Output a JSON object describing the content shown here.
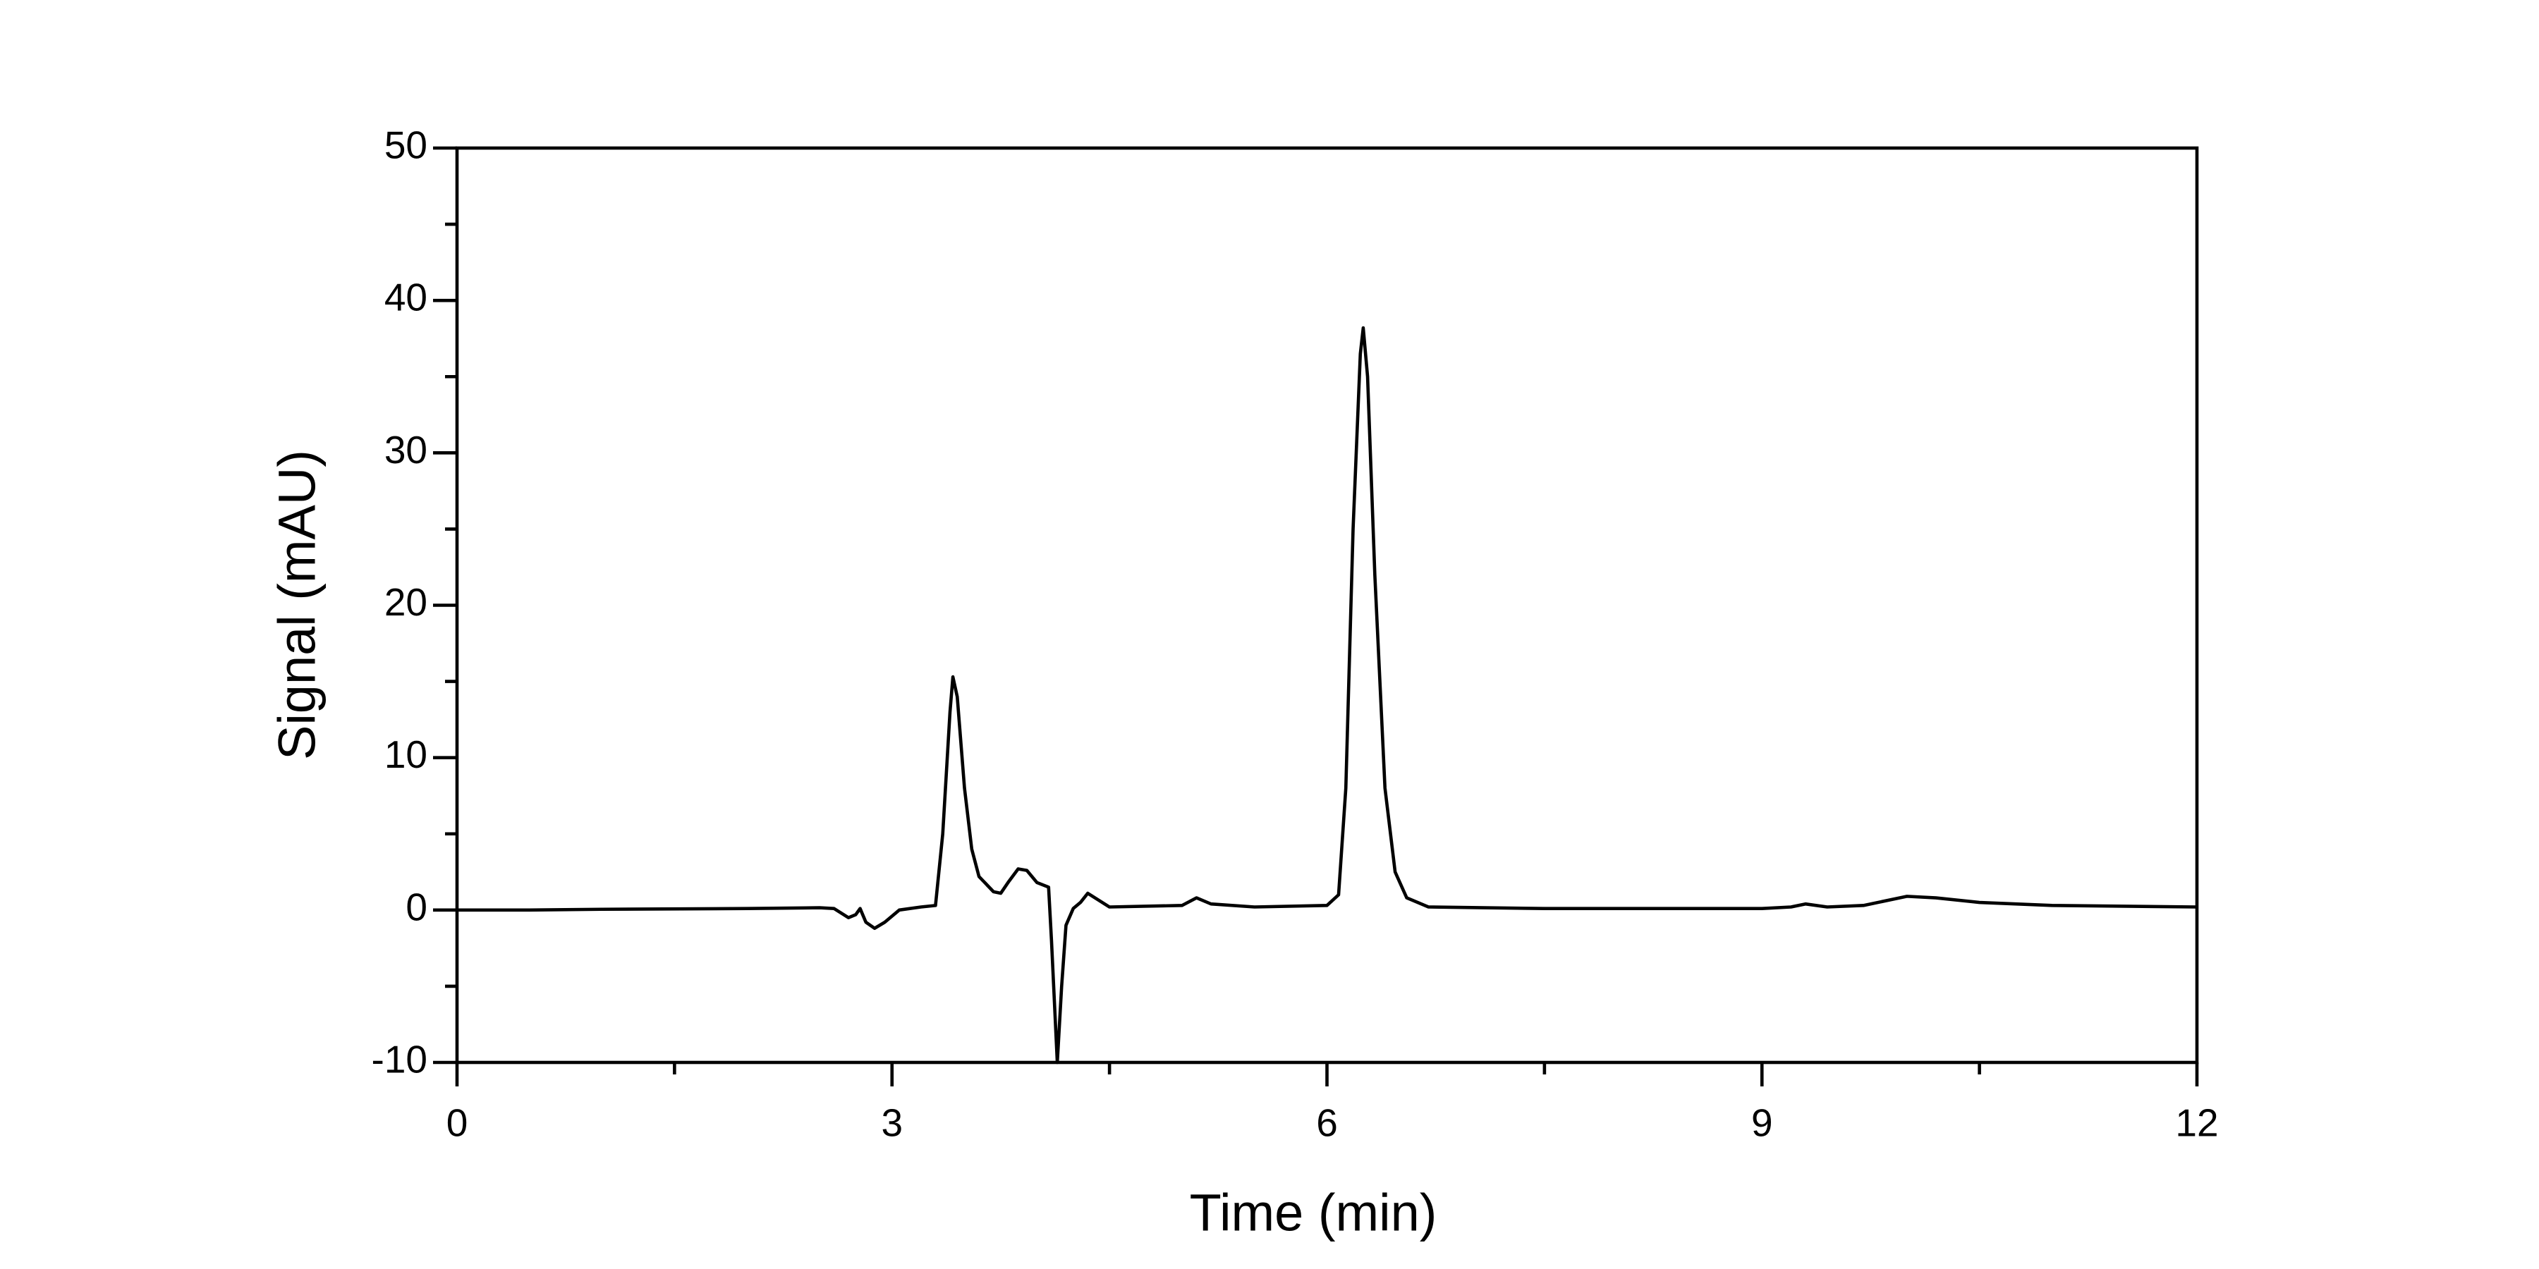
{
  "chart_data": {
    "type": "line",
    "x_label": "Time (min)",
    "y_label": "Signal (mAU)",
    "series": [
      {
        "color": "#000000",
        "x": [
          0,
          0.5,
          1,
          2,
          2.5,
          2.6,
          2.7,
          2.75,
          2.78,
          2.82,
          2.88,
          2.95,
          3.05,
          3.2,
          3.3,
          3.35,
          3.4,
          3.42,
          3.45,
          3.5,
          3.55,
          3.6,
          3.7,
          3.75,
          3.8,
          3.87,
          3.93,
          4.0,
          4.08,
          4.1,
          4.14,
          4.17,
          4.2,
          4.25,
          4.3,
          4.35,
          4.4,
          4.5,
          5.0,
          5.1,
          5.2,
          5.5,
          6.0,
          6.08,
          6.13,
          6.18,
          6.23,
          6.25,
          6.28,
          6.33,
          6.4,
          6.47,
          6.55,
          6.7,
          7.5,
          8,
          9,
          9.2,
          9.3,
          9.45,
          9.7,
          10,
          10.2,
          10.5,
          11,
          12
        ],
        "values": [
          0,
          0,
          0.05,
          0.1,
          0.15,
          0.1,
          -0.5,
          -0.3,
          0.1,
          -0.8,
          -1.2,
          -0.8,
          0,
          0.2,
          0.3,
          5,
          13,
          15.3,
          14,
          8,
          4,
          2.2,
          1.2,
          1.1,
          1.8,
          2.7,
          2.6,
          1.8,
          1.5,
          -2,
          -10,
          -5,
          -1,
          0.1,
          0.5,
          1.1,
          0.8,
          0.2,
          0.3,
          0.8,
          0.4,
          0.2,
          0.3,
          1,
          8,
          25,
          36.5,
          38.2,
          35,
          22,
          8,
          2.5,
          0.8,
          0.2,
          0.1,
          0.1,
          0.1,
          0.2,
          0.4,
          0.2,
          0.3,
          0.9,
          0.8,
          0.5,
          0.3,
          0.2
        ]
      }
    ],
    "xlim": [
      0,
      12
    ],
    "xticks": [
      0,
      3,
      6,
      9,
      12
    ],
    "x_minor_ticks": [
      1.5,
      4.5,
      7.5,
      10.5
    ],
    "ylim": [
      -10,
      50
    ],
    "yticks": [
      -10,
      0,
      10,
      20,
      30,
      40,
      50
    ],
    "y_minor_ticks": [
      -5,
      5,
      15,
      25,
      35,
      45
    ],
    "grid": false
  }
}
